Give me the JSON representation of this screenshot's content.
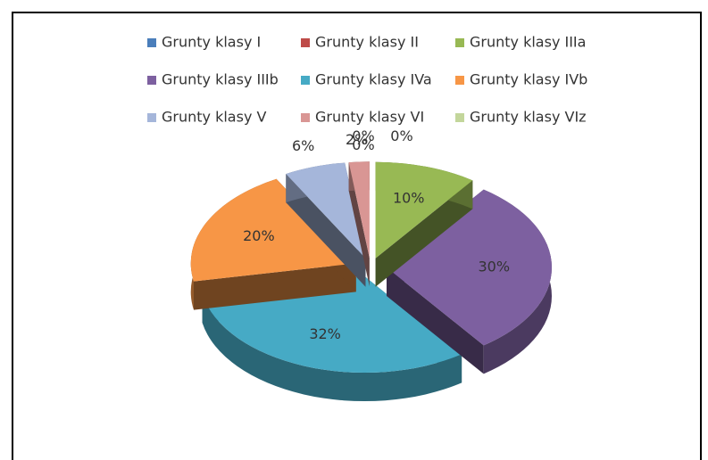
{
  "chart_data": {
    "type": "pie",
    "categories": [
      "Grunty klasy I",
      "Grunty klasy II",
      "Grunty klasy IIIa",
      "Grunty klasy IIIb",
      "Grunty klasy IVa",
      "Grunty klasy IVb",
      "Grunty klasy V",
      "Grunty klasy VI",
      "Grunty klasy VIz"
    ],
    "values": [
      0,
      0,
      10,
      30,
      32,
      20,
      6,
      2,
      0
    ],
    "value_labels": [
      "0%",
      "0%",
      "10%",
      "30%",
      "32%",
      "20%",
      "6%",
      "2%",
      "0%"
    ],
    "colors": [
      "#4a7ebb",
      "#be4b48",
      "#98b954",
      "#7d60a0",
      "#46aac5",
      "#f79646",
      "#a5b6da",
      "#d99694",
      "#c3d69b"
    ],
    "legend": "top"
  }
}
